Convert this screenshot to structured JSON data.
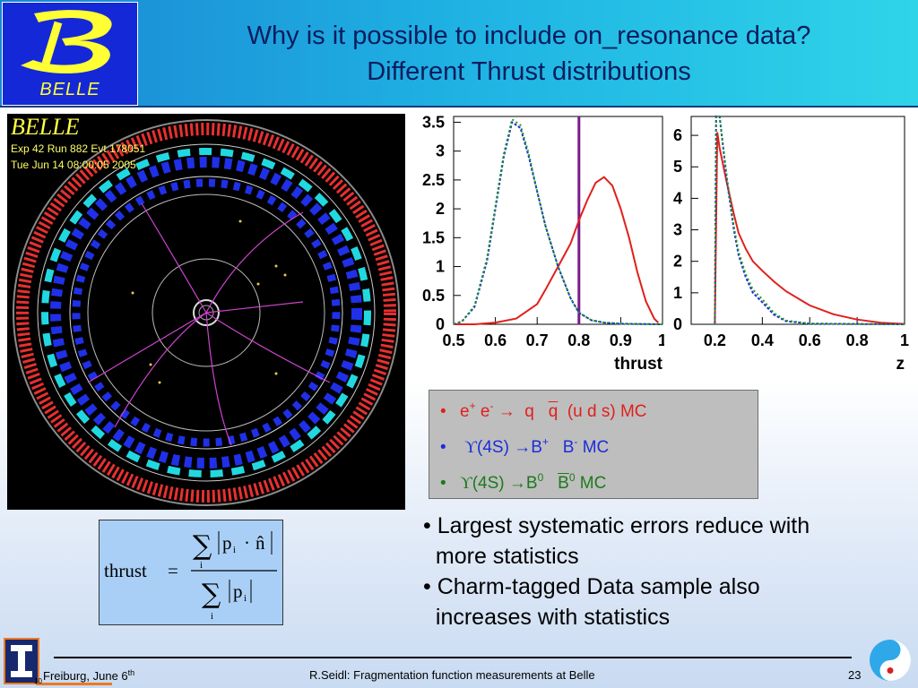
{
  "header": {
    "logo_text": "BELLE",
    "title_line1": "Why is it possible to include on_resonance data?",
    "title_line2": "Different Thrust distributions"
  },
  "event_display": {
    "label": "BELLE",
    "run_info": "Exp 42 Run 882 Evt 178051",
    "date": "Tue Jun 14 08:00:05 2005"
  },
  "chart_data": [
    {
      "type": "line",
      "xlabel": "thrust",
      "xlim": [
        0.5,
        1.0
      ],
      "ylim": [
        0,
        3.6
      ],
      "x_ticks": [
        "0.5",
        "0.6",
        "0.7",
        "0.8",
        "0.9",
        "1"
      ],
      "y_ticks": [
        "0",
        "0.5",
        "1",
        "1.5",
        "2",
        "2.5",
        "3",
        "3.5"
      ],
      "cut_line_x": 0.8,
      "series": [
        {
          "color": "#e0201c",
          "x": [
            0.5,
            0.55,
            0.6,
            0.65,
            0.7,
            0.72,
            0.75,
            0.78,
            0.8,
            0.82,
            0.84,
            0.86,
            0.88,
            0.9,
            0.92,
            0.94,
            0.96,
            0.98,
            0.99
          ],
          "y": [
            0,
            0.0,
            0.03,
            0.1,
            0.35,
            0.6,
            1.0,
            1.4,
            1.8,
            2.15,
            2.45,
            2.55,
            2.4,
            2.0,
            1.5,
            0.9,
            0.4,
            0.1,
            0.03
          ]
        },
        {
          "color": "#1c2dd8",
          "x": [
            0.5,
            0.52,
            0.55,
            0.58,
            0.6,
            0.62,
            0.64,
            0.66,
            0.68,
            0.7,
            0.72,
            0.75,
            0.78,
            0.8,
            0.83,
            0.86,
            0.9,
            1.0
          ],
          "y": [
            0,
            0.05,
            0.3,
            1.1,
            2.0,
            2.9,
            3.5,
            3.4,
            2.9,
            2.3,
            1.7,
            1.0,
            0.45,
            0.2,
            0.07,
            0.03,
            0.01,
            0
          ]
        },
        {
          "color": "#1c9a1c",
          "x": [
            0.5,
            0.52,
            0.55,
            0.58,
            0.6,
            0.62,
            0.64,
            0.66,
            0.68,
            0.7,
            0.72,
            0.75,
            0.78,
            0.8,
            0.83,
            0.86,
            0.9,
            1.0
          ],
          "y": [
            0,
            0.05,
            0.32,
            1.15,
            2.05,
            2.95,
            3.55,
            3.45,
            2.95,
            2.3,
            1.7,
            1.0,
            0.45,
            0.2,
            0.07,
            0.03,
            0.01,
            0
          ]
        }
      ]
    },
    {
      "type": "line",
      "xlabel": "z",
      "xlim": [
        0.1,
        1.0
      ],
      "ylim": [
        0,
        6.6
      ],
      "x_ticks": [
        "0.2",
        "0.4",
        "0.6",
        "0.8",
        "1"
      ],
      "y_ticks": [
        "0",
        "1",
        "2",
        "3",
        "4",
        "5",
        "6"
      ],
      "series": [
        {
          "color": "#e0201c",
          "x": [
            0.2,
            0.21,
            0.22,
            0.25,
            0.28,
            0.3,
            0.33,
            0.36,
            0.4,
            0.45,
            0.5,
            0.6,
            0.7,
            0.8,
            0.9,
            1.0
          ],
          "y": [
            0,
            6.1,
            5.6,
            4.5,
            3.5,
            2.9,
            2.4,
            2.0,
            1.7,
            1.35,
            1.05,
            0.6,
            0.32,
            0.15,
            0.05,
            0.01
          ]
        },
        {
          "color": "#1c2dd8",
          "x": [
            0.2,
            0.205,
            0.21,
            0.22,
            0.25,
            0.28,
            0.3,
            0.33,
            0.36,
            0.4,
            0.45,
            0.5,
            0.6,
            1.0
          ],
          "y": [
            0,
            6.6,
            6.6,
            6.6,
            4.6,
            3.0,
            2.2,
            1.5,
            1.0,
            0.7,
            0.3,
            0.1,
            0.02,
            0
          ]
        },
        {
          "color": "#1c9a1c",
          "x": [
            0.2,
            0.205,
            0.21,
            0.22,
            0.25,
            0.28,
            0.3,
            0.33,
            0.36,
            0.4,
            0.45,
            0.5,
            0.6,
            1.0
          ],
          "y": [
            0,
            6.6,
            6.6,
            6.6,
            4.7,
            3.1,
            2.3,
            1.6,
            1.1,
            0.8,
            0.35,
            0.12,
            0.02,
            0
          ]
        }
      ]
    }
  ],
  "legend": {
    "item1": {
      "bullet": "•",
      "e": "e",
      "plus": "+",
      "e2": "e",
      "minus": "-",
      "arrow": "→",
      "q": "q",
      "qbar": "q",
      "rest": "(u d s)  MC"
    },
    "item2": {
      "bullet": "•",
      "ups": "ϒ",
      "mid": "(4S) →B",
      "plus": "+",
      "b": "B",
      "minus": "-",
      "rest": "MC"
    },
    "item3": {
      "bullet": "•",
      "ups": "ϒ",
      "mid": "(4S) →B",
      "zero": "0",
      "b": "B",
      "zero2": "0",
      "rest": "MC"
    }
  },
  "formula": {
    "lhs": "thrust",
    "eq": "=",
    "sigma": "∑",
    "numerator_pi": "p",
    "sub_i": "i",
    "dot": "·",
    "nhat": "n̂"
  },
  "bullets": [
    "• Largest systematic errors reduce with",
    "  more statistics",
    "• Charm-tagged Data sample also",
    "  increases with statistics"
  ],
  "footer": {
    "left": "Freiburg, June 6",
    "left_sup": "th",
    "small": "10",
    "middle": "R.Seidl: Fragmentation function measurements at Belle",
    "page": "23"
  },
  "colors": {
    "header_start": "#1b86d3",
    "header_end": "#2fd4e9",
    "title": "#0a1d5e",
    "uds": "#e0201c",
    "charged_b": "#1c2dd8",
    "neutral_b": "#1c7a1c",
    "formula_bg": "#a9cff6"
  }
}
